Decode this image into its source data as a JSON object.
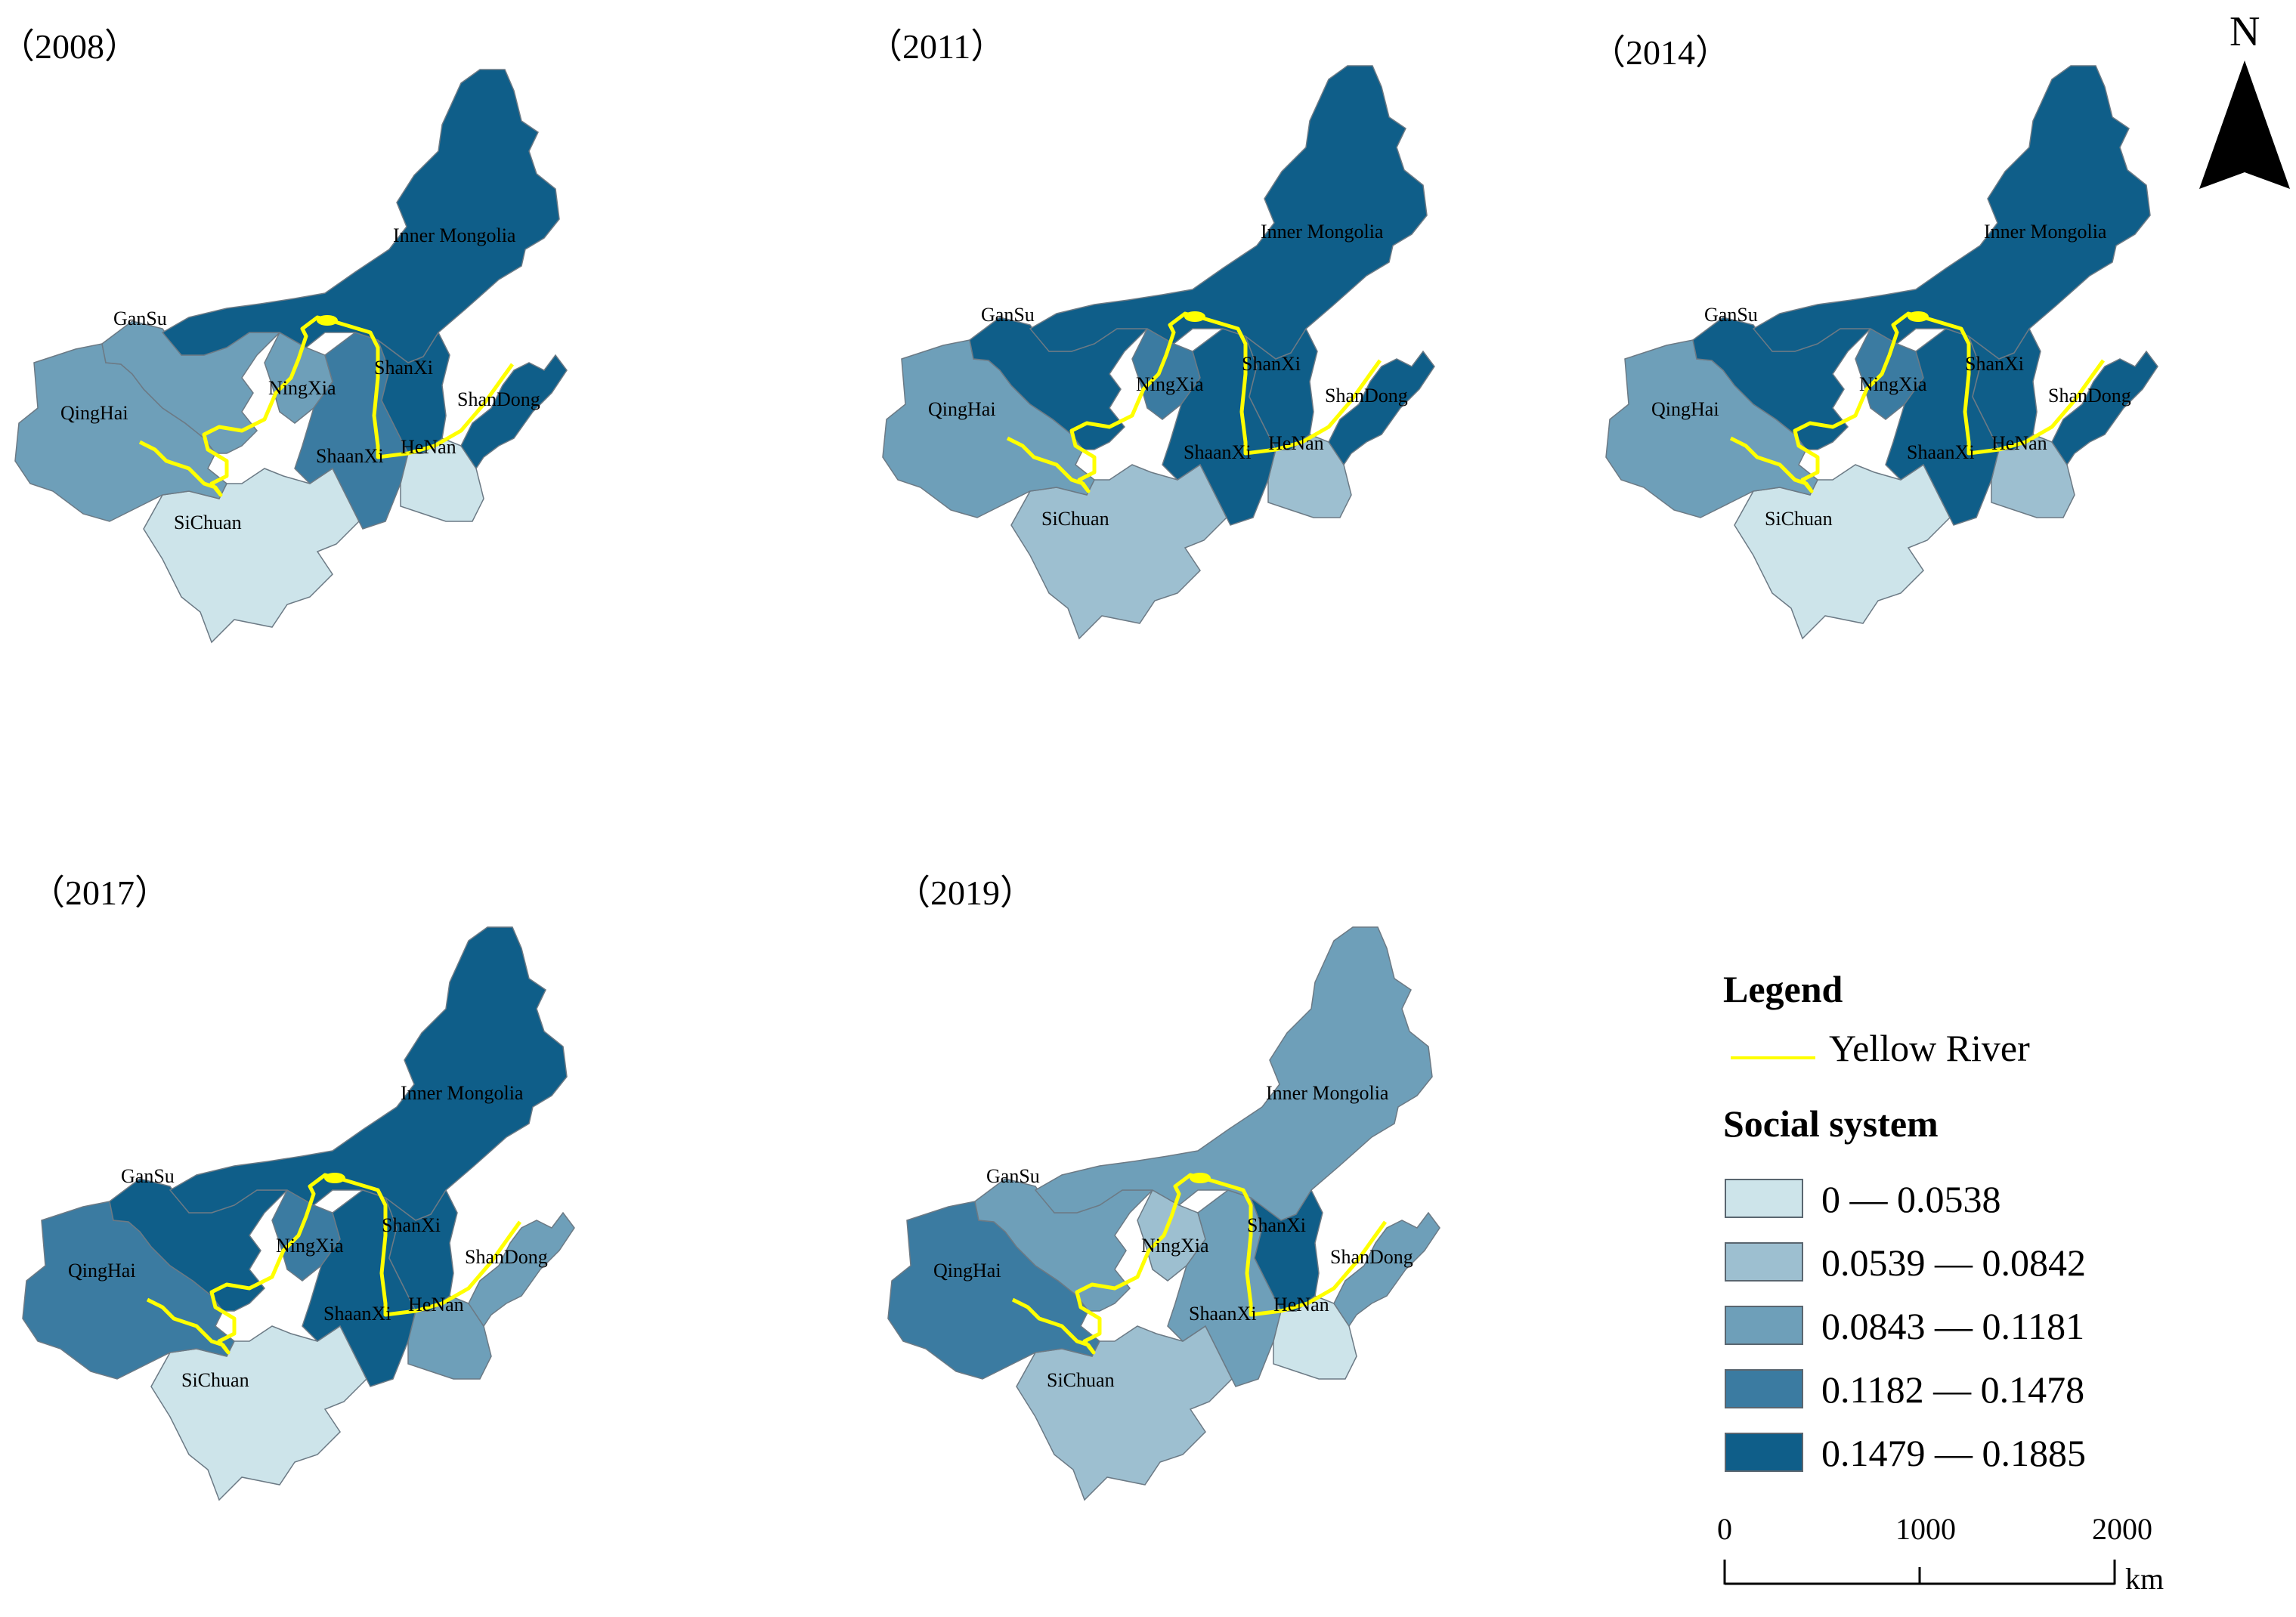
{
  "colors": {
    "class1": "#cde4ea",
    "class2": "#9dbfd0",
    "class3": "#6e9fb9",
    "class4": "#3b7ba1",
    "class5": "#0f5e89",
    "river": "#ffff00",
    "boundary": "#6c7a85"
  },
  "provinces": [
    "QingHai",
    "GanSu",
    "SiChuan",
    "NingXia",
    "Inner Mongolia",
    "ShaanXi",
    "ShanXi",
    "HeNan",
    "ShanDong"
  ],
  "panels": [
    {
      "year_label": "（2008）",
      "classes": {
        "QingHai": 3,
        "GanSu": 3,
        "SiChuan": 1,
        "NingXia": 3,
        "Inner Mongolia": 5,
        "ShaanXi": 4,
        "ShanXi": 5,
        "HeNan": 1,
        "ShanDong": 5
      }
    },
    {
      "year_label": "（2011）",
      "classes": {
        "QingHai": 3,
        "GanSu": 5,
        "SiChuan": 2,
        "NingXia": 4,
        "Inner Mongolia": 5,
        "ShaanXi": 5,
        "ShanXi": 5,
        "HeNan": 2,
        "ShanDong": 5
      }
    },
    {
      "year_label": "（2014）",
      "classes": {
        "QingHai": 3,
        "GanSu": 5,
        "SiChuan": 1,
        "NingXia": 4,
        "Inner Mongolia": 5,
        "ShaanXi": 5,
        "ShanXi": 5,
        "HeNan": 2,
        "ShanDong": 5
      }
    },
    {
      "year_label": "（2017）",
      "classes": {
        "QingHai": 4,
        "GanSu": 5,
        "SiChuan": 1,
        "NingXia": 4,
        "Inner Mongolia": 5,
        "ShaanXi": 5,
        "ShanXi": 5,
        "HeNan": 3,
        "ShanDong": 3
      }
    },
    {
      "year_label": "（2019）",
      "classes": {
        "QingHai": 4,
        "GanSu": 3,
        "SiChuan": 2,
        "NingXia": 2,
        "Inner Mongolia": 3,
        "ShaanXi": 3,
        "ShanXi": 5,
        "HeNan": 1,
        "ShanDong": 3
      }
    }
  ],
  "legend": {
    "title": "Legend",
    "river_label": "Yellow River",
    "subtitle": "Social system",
    "classes": [
      {
        "label": "0 — 0.0538",
        "class": 1
      },
      {
        "label": "0.0539 — 0.0842",
        "class": 2
      },
      {
        "label": "0.0843 — 0.1181",
        "class": 3
      },
      {
        "label": "0.1182 — 0.1478",
        "class": 4
      },
      {
        "label": "0.1479 — 0.1885",
        "class": 5
      }
    ]
  },
  "scale_bar": {
    "ticks": [
      "0",
      "1000",
      "2000"
    ],
    "unit": "km"
  },
  "north_arrow": {
    "label": "N"
  }
}
